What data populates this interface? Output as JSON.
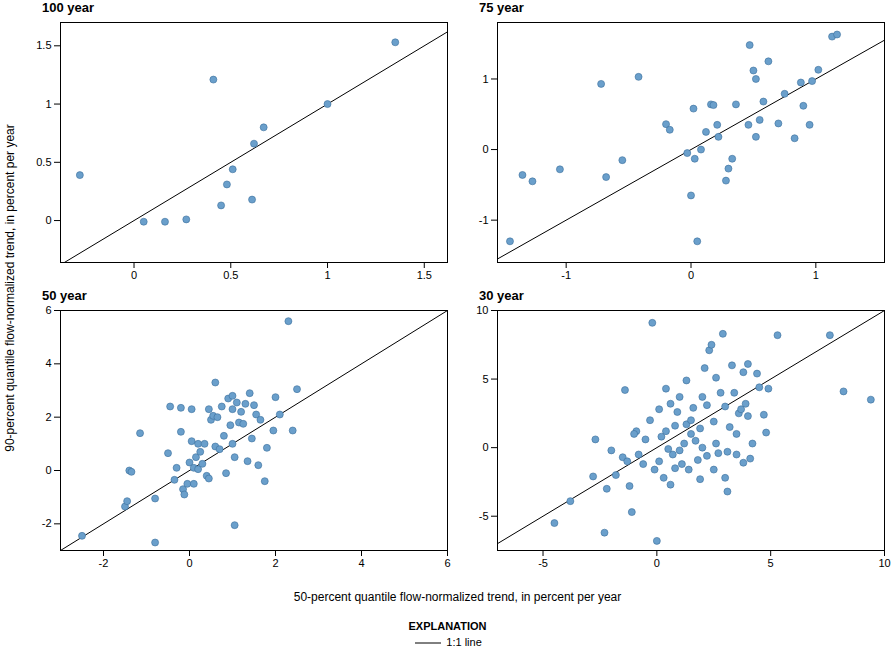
{
  "chart_data": [
    {
      "type": "scatter",
      "title": "100 year",
      "color": "#6a9fcb",
      "xlim": [
        -0.38,
        1.62
      ],
      "ylim": [
        -0.36,
        1.7
      ],
      "xticks": [
        0,
        0.5,
        1,
        1.5
      ],
      "yticks": [
        0,
        0.5,
        1,
        1.5
      ],
      "x": [
        -0.28,
        0.05,
        0.16,
        0.27,
        0.41,
        0.45,
        0.48,
        0.51,
        0.61,
        0.62,
        0.67,
        1.0,
        1.35
      ],
      "y": [
        0.39,
        -0.01,
        -0.01,
        0.01,
        1.21,
        0.13,
        0.31,
        0.44,
        0.18,
        0.66,
        0.8,
        1.0,
        1.53
      ]
    },
    {
      "type": "scatter",
      "title": "75 year",
      "color": "#6a9fcb",
      "xlim": [
        -1.55,
        1.55
      ],
      "ylim": [
        -1.6,
        1.8
      ],
      "xticks": [
        -1,
        0,
        1
      ],
      "yticks": [
        -1,
        0,
        1
      ],
      "x": [
        -1.45,
        -1.35,
        -1.27,
        -1.05,
        -0.72,
        -0.68,
        -0.42,
        -0.55,
        -0.2,
        -0.17,
        -0.03,
        0.0,
        0.02,
        0.03,
        0.05,
        0.08,
        0.12,
        0.16,
        0.18,
        0.21,
        0.22,
        0.28,
        0.3,
        0.33,
        0.36,
        0.46,
        0.47,
        0.5,
        0.52,
        0.52,
        0.55,
        0.58,
        0.62,
        0.7,
        0.75,
        0.83,
        0.88,
        0.9,
        0.95,
        0.97,
        1.02,
        1.13,
        1.17
      ],
      "y": [
        -1.3,
        -0.36,
        -0.45,
        -0.28,
        0.93,
        -0.39,
        1.03,
        -0.15,
        0.36,
        0.28,
        -0.05,
        -0.65,
        0.58,
        -0.13,
        -1.3,
        0.0,
        0.25,
        0.64,
        0.63,
        0.35,
        0.18,
        -0.44,
        -0.27,
        -0.13,
        0.64,
        0.35,
        1.48,
        1.12,
        1.0,
        0.18,
        0.42,
        0.68,
        1.25,
        0.37,
        0.79,
        0.16,
        0.95,
        0.62,
        0.35,
        0.97,
        1.13,
        1.6,
        1.63
      ]
    },
    {
      "type": "scatter",
      "title": "50 year",
      "color": "#6a9fcb",
      "xlim": [
        -3,
        6
      ],
      "ylim": [
        -3,
        6
      ],
      "xticks": [
        -2,
        0,
        2,
        4,
        6
      ],
      "yticks": [
        -2,
        0,
        2,
        4,
        6
      ],
      "x": [
        -2.5,
        -1.5,
        -1.45,
        -1.4,
        -1.35,
        -1.15,
        -0.8,
        -0.8,
        -0.5,
        -0.45,
        -0.35,
        -0.3,
        -0.2,
        -0.2,
        -0.15,
        -0.12,
        -0.05,
        0.0,
        0.05,
        0.05,
        0.1,
        0.1,
        0.15,
        0.2,
        0.2,
        0.25,
        0.3,
        0.35,
        0.4,
        0.45,
        0.45,
        0.5,
        0.55,
        0.6,
        0.6,
        0.65,
        0.7,
        0.75,
        0.8,
        0.85,
        0.9,
        0.95,
        1.0,
        1.0,
        1.0,
        1.05,
        1.05,
        1.1,
        1.15,
        1.2,
        1.25,
        1.3,
        1.35,
        1.4,
        1.45,
        1.5,
        1.55,
        1.6,
        1.65,
        1.75,
        1.8,
        1.95,
        2.0,
        2.1,
        2.3,
        2.4,
        2.5
      ],
      "y": [
        -2.45,
        -1.35,
        -1.15,
        0.0,
        -0.05,
        1.4,
        -2.7,
        -1.05,
        0.65,
        2.4,
        -0.35,
        0.1,
        1.45,
        2.35,
        -0.7,
        -0.9,
        -0.5,
        0.3,
        1.1,
        2.3,
        0.1,
        -0.5,
        0.5,
        0.05,
        1.0,
        0.7,
        0.25,
        1.0,
        -0.2,
        -0.3,
        2.3,
        1.9,
        2.05,
        3.3,
        0.9,
        2.0,
        0.8,
        2.4,
        1.3,
        -0.1,
        2.7,
        1.7,
        2.3,
        2.8,
        1.0,
        0.5,
        -2.05,
        2.55,
        1.8,
        2.2,
        1.75,
        2.5,
        0.35,
        2.9,
        1.2,
        2.45,
        2.1,
        0.2,
        1.9,
        -0.4,
        0.85,
        1.5,
        2.75,
        2.1,
        5.6,
        1.5,
        3.05
      ]
    },
    {
      "type": "scatter",
      "title": "30 year",
      "color": "#6a9fcb",
      "xlim": [
        -7,
        10
      ],
      "ylim": [
        -7.5,
        10
      ],
      "xticks": [
        -5,
        0,
        5,
        10
      ],
      "yticks": [
        -5,
        0,
        5,
        10
      ],
      "x": [
        -4.5,
        -3.8,
        -2.8,
        -2.7,
        -2.3,
        -2.2,
        -2.0,
        -1.8,
        -1.5,
        -1.4,
        -1.3,
        -1.2,
        -1.1,
        -0.9,
        -0.8,
        -0.5,
        -0.3,
        -0.2,
        -0.1,
        0.0,
        0.1,
        0.2,
        0.3,
        0.4,
        0.4,
        0.6,
        0.7,
        0.8,
        0.8,
        0.9,
        1.0,
        1.1,
        1.2,
        1.3,
        1.3,
        1.4,
        1.5,
        1.6,
        1.7,
        1.8,
        1.9,
        2.0,
        2.1,
        2.2,
        2.3,
        2.4,
        2.5,
        2.5,
        2.6,
        2.7,
        2.8,
        2.9,
        3.0,
        3.0,
        3.1,
        3.1,
        3.2,
        3.3,
        3.4,
        3.5,
        3.6,
        3.7,
        3.8,
        3.9,
        4.0,
        4.0,
        4.2,
        4.4,
        4.5,
        4.7,
        4.8,
        4.9,
        5.3,
        7.6,
        8.2,
        9.4,
        0.5,
        1.0,
        2.0,
        1.5,
        3.5,
        -0.6,
        2.2,
        3.8,
        1.9,
        0.1,
        2.6,
        4.1,
        0.6,
        -1.0
      ],
      "y": [
        -5.5,
        -3.9,
        -2.1,
        0.6,
        -6.2,
        -3.0,
        -0.2,
        -2.0,
        -0.7,
        4.2,
        -1.0,
        -2.8,
        -4.7,
        1.2,
        -0.5,
        0.6,
        2.0,
        9.1,
        -1.6,
        -6.8,
        -1.0,
        0.8,
        -2.2,
        1.2,
        4.3,
        3.2,
        -0.5,
        1.6,
        -1.5,
        2.6,
        3.7,
        -1.2,
        0.3,
        1.7,
        4.9,
        -1.6,
        1.0,
        2.9,
        0.5,
        -0.9,
        1.4,
        3.7,
        5.8,
        -0.6,
        7.1,
        7.5,
        1.9,
        -1.6,
        0.3,
        -0.4,
        4.0,
        8.3,
        3.0,
        -2.2,
        -3.2,
        -0.3,
        1.5,
        6.0,
        4.0,
        -0.5,
        2.5,
        2.8,
        5.5,
        3.2,
        6.1,
        2.3,
        0.3,
        5.4,
        4.4,
        2.4,
        1.1,
        4.3,
        8.2,
        8.2,
        4.1,
        3.5,
        -0.1,
        -0.2,
        0.0,
        2.0,
        1.0,
        -1.2,
        3.1,
        -1.1,
        -2.3,
        2.8,
        5.1,
        -0.8,
        -2.7,
        1.0
      ]
    }
  ],
  "xlabel": "50-percent quantile flow-normalized trend, in percent per year",
  "ylabel": "90-percent quantile flow-normalized trend, in percent per year",
  "explanation": {
    "title": "EXPLANATION",
    "line": "1:1 line",
    "line_color": "#000000"
  }
}
